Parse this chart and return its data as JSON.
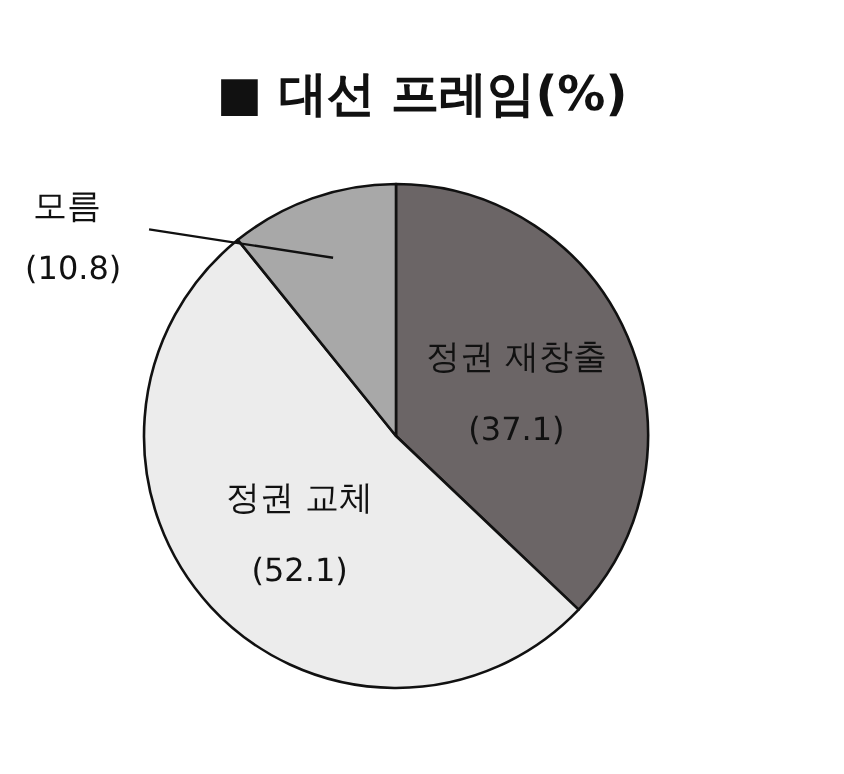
{
  "chart_data": {
    "type": "pie",
    "title": "■ 대선 프레임(%)",
    "categories": [
      "정권 재창출",
      "정권 교체",
      "모름"
    ],
    "values": [
      37.1,
      52.1,
      10.8
    ],
    "colors": [
      "#6b6566",
      "#ececec",
      "#a8a8a8"
    ],
    "value_labels": [
      "(37.1)",
      "(52.1)",
      "(10.8)"
    ]
  }
}
